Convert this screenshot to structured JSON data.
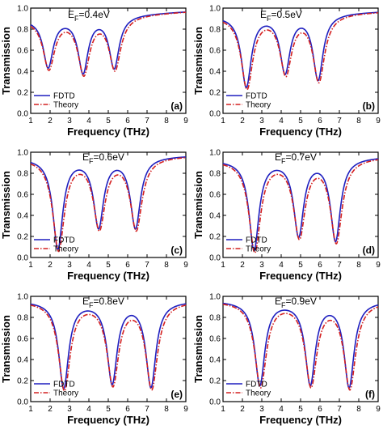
{
  "figure": {
    "ylabel": "Transmission",
    "xlabel": "Frequency (THz)",
    "legend": [
      "FDTD",
      "Theory"
    ],
    "colors": {
      "fdtd": "#1f1fbf",
      "theory": "#d42020"
    }
  },
  "chart_data": [
    {
      "type": "line",
      "panel": "(a)",
      "ef": "0.4eV",
      "ef_prefix": "E",
      "ef_sub": "F",
      "ef_eq": "=0.4eV",
      "xlim": [
        1,
        9
      ],
      "ylim": [
        0.0,
        1.0
      ],
      "xticks": [
        1,
        2,
        3,
        4,
        5,
        6,
        7,
        8,
        9
      ],
      "yticks": [
        0.0,
        0.2,
        0.4,
        0.6,
        0.8,
        1.0
      ],
      "legend_position": "bottom-left",
      "dips": [
        {
          "f": 1.9,
          "depth": 0.43
        },
        {
          "f": 3.7,
          "depth": 0.37
        },
        {
          "f": 5.3,
          "depth": 0.42
        }
      ],
      "baseline_start": 0.9,
      "baseline_end": 0.97,
      "series": [
        {
          "name": "FDTD"
        },
        {
          "name": "Theory"
        }
      ]
    },
    {
      "type": "line",
      "panel": "(b)",
      "ef": "0.5eV",
      "ef_prefix": "E",
      "ef_sub": "F",
      "ef_eq": "=0.5eV",
      "xlim": [
        1,
        9
      ],
      "ylim": [
        0.0,
        1.0
      ],
      "xticks": [
        1,
        2,
        3,
        4,
        5,
        6,
        7,
        8,
        9
      ],
      "yticks": [
        0.0,
        0.2,
        0.4,
        0.6,
        0.8,
        1.0
      ],
      "legend_position": "bottom-left",
      "dips": [
        {
          "f": 2.2,
          "depth": 0.24
        },
        {
          "f": 4.2,
          "depth": 0.37
        },
        {
          "f": 5.9,
          "depth": 0.31
        }
      ],
      "baseline_start": 0.93,
      "baseline_end": 0.97,
      "series": [
        {
          "name": "FDTD"
        },
        {
          "name": "Theory"
        }
      ]
    },
    {
      "type": "line",
      "panel": "(c)",
      "ef": "0.6eV",
      "ef_prefix": "E",
      "ef_sub": "F",
      "ef_eq": "=0.6eV",
      "xlim": [
        1,
        9
      ],
      "ylim": [
        0.0,
        1.0
      ],
      "xticks": [
        1,
        2,
        3,
        4,
        5,
        6,
        7,
        8,
        9
      ],
      "yticks": [
        0.0,
        0.2,
        0.4,
        0.6,
        0.8,
        1.0
      ],
      "legend_position": "bottom-left",
      "dips": [
        {
          "f": 2.4,
          "depth": 0.07
        },
        {
          "f": 4.5,
          "depth": 0.27
        },
        {
          "f": 6.4,
          "depth": 0.27
        }
      ],
      "baseline_start": 0.95,
      "baseline_end": 0.97,
      "series": [
        {
          "name": "FDTD"
        },
        {
          "name": "Theory"
        }
      ]
    },
    {
      "type": "line",
      "panel": "(d)",
      "ef": "0.7eV",
      "ef_prefix": "E",
      "ef_sub": "F",
      "ef_eq": "=0.7eV",
      "xlim": [
        1,
        9
      ],
      "ylim": [
        0.0,
        1.0
      ],
      "xticks": [
        1,
        2,
        3,
        4,
        5,
        6,
        7,
        8,
        9
      ],
      "yticks": [
        0.0,
        0.2,
        0.4,
        0.6,
        0.8,
        1.0
      ],
      "legend_position": "bottom-left",
      "dips": [
        {
          "f": 2.6,
          "depth": 0.06
        },
        {
          "f": 4.9,
          "depth": 0.19
        },
        {
          "f": 6.8,
          "depth": 0.15
        }
      ],
      "baseline_start": 0.93,
      "baseline_end": 0.96,
      "series": [
        {
          "name": "FDTD"
        },
        {
          "name": "Theory"
        }
      ]
    },
    {
      "type": "line",
      "panel": "(e)",
      "ef": "0.8eV",
      "ef_prefix": "E",
      "ef_sub": "F",
      "ef_eq": "=0.8eV",
      "xlim": [
        1,
        9
      ],
      "ylim": [
        0.0,
        1.0
      ],
      "xticks": [
        1,
        2,
        3,
        4,
        5,
        6,
        7,
        8,
        9
      ],
      "yticks": [
        0.0,
        0.2,
        0.4,
        0.6,
        0.8,
        1.0
      ],
      "legend_position": "bottom-left",
      "dips": [
        {
          "f": 2.7,
          "depth": 0.12
        },
        {
          "f": 5.2,
          "depth": 0.16
        },
        {
          "f": 7.2,
          "depth": 0.13
        }
      ],
      "baseline_start": 0.96,
      "baseline_end": 0.96,
      "series": [
        {
          "name": "FDTD"
        },
        {
          "name": "Theory"
        }
      ]
    },
    {
      "type": "line",
      "panel": "(f)",
      "ef": "0.9eV",
      "ef_prefix": "E",
      "ef_sub": "F",
      "ef_eq": "=0.9eV",
      "xlim": [
        1,
        9
      ],
      "ylim": [
        0.0,
        1.0
      ],
      "xticks": [
        1,
        2,
        3,
        4,
        5,
        6,
        7,
        8,
        9
      ],
      "yticks": [
        0.0,
        0.2,
        0.4,
        0.6,
        0.8,
        1.0
      ],
      "legend_position": "bottom-left",
      "dips": [
        {
          "f": 2.9,
          "depth": 0.15
        },
        {
          "f": 5.5,
          "depth": 0.15
        },
        {
          "f": 7.5,
          "depth": 0.13
        }
      ],
      "baseline_start": 0.96,
      "baseline_end": 0.96,
      "series": [
        {
          "name": "FDTD"
        },
        {
          "name": "Theory"
        }
      ]
    }
  ]
}
